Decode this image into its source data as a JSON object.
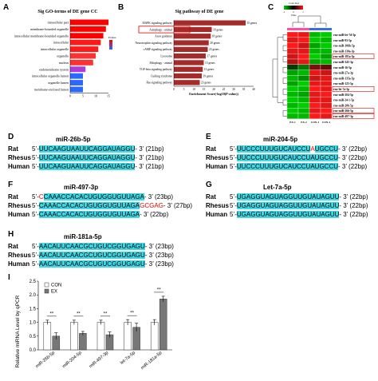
{
  "panels": {
    "A": {
      "label": "A",
      "title": "Sig GO-terms of DE gene CC",
      "terms": [
        "intracellular part",
        "membrane-bounded organelle",
        "intracellular membrane-bounded organelle",
        "intracellular",
        "intracellular organelle",
        "organelle",
        "nucleus",
        "endomembrane system",
        "intracellular organelle lumen",
        "organelle lumen",
        "membrane-enclosed lumen"
      ],
      "values": [
        15,
        14,
        13,
        12,
        11,
        10,
        9,
        6,
        5,
        5,
        5
      ],
      "bar_colors": [
        "#ff0000",
        "#ff0000",
        "#ff0000",
        "#ff1a1a",
        "#ff1a1a",
        "#ff3030",
        "#ff3030",
        "#b03ad8",
        "#2a68ff",
        "#2a68ff",
        "#2a68ff"
      ],
      "xticks": [
        "0",
        "5",
        "10",
        "15"
      ],
      "legend_title": "Pvalue"
    },
    "B": {
      "label": "B",
      "title": "Sig pathway of DE gene",
      "pathways": [
        "MAPK signaling pathway",
        "Autophagy - animal",
        "Axon guidance",
        "Neurotrophin signaling pathway",
        "cAMP signaling pathway",
        "Lysosome",
        "Mitophagy - animal",
        "TGF-beta signaling pathway",
        "Cushing syndrome",
        "Ras signaling pathway"
      ],
      "counts": [
        "35 genes",
        "18 genes",
        "18 genes",
        "20 genes",
        "23 genes",
        "17 genes",
        "13 genes",
        "13 genes",
        "19 genes",
        "23 genes"
      ],
      "values": [
        36,
        19,
        18.5,
        17.5,
        17,
        16,
        15,
        14.5,
        14,
        13
      ],
      "boxed": "Autophagy - animal",
      "xlabel": "Enrichment Score(-log10(P value))",
      "xticks": [
        "0",
        "5",
        "10",
        "15",
        "20",
        "25",
        "30",
        "35",
        "40"
      ]
    },
    "C": {
      "label": "C",
      "rows": [
        "rno-miR-let-7d-5p",
        "rno-miR-93-5p",
        "rno-miR-106b-5p",
        "rno-miR-130a-3p",
        "rno-miR-181a-5p",
        "rno-miR-345-3p",
        "rno-miR-16-5p",
        "rno-miR-27a-3p",
        "rno-miR-135a-5p",
        "rno-miR-125-5p",
        "rno-let-7a-5p",
        "rno-miR-204-5p",
        "rno-miR-24-1-5p",
        "rno-miR-206-5p",
        "rno-miR-26b-5p",
        "rno-miR-497-3p"
      ],
      "boxed_rows": [
        "rno-miR-181a-5p",
        "rno-let-7a-5p",
        "rno-miR-26b-5p",
        "rno-miR-497-3p"
      ],
      "columns": [
        "EX-1",
        "EX-2",
        "CON-1",
        "CON-2"
      ],
      "key_title": "Color Key",
      "key_label": "Value",
      "key_ticks": [
        "-1",
        "0",
        "1"
      ],
      "colors": {
        "high": "#ff1a1a",
        "low": "#00cc00",
        "mid": "#000000",
        "ex_bar": "#ff4fa0",
        "con_bar": "#3b6be8"
      },
      "heat": [
        [
          1,
          0.9,
          -0.9,
          -1
        ],
        [
          0.9,
          1,
          -1,
          -0.9
        ],
        [
          1,
          0.8,
          -0.8,
          -1
        ],
        [
          0.9,
          0.9,
          -0.9,
          -0.9
        ],
        [
          0.8,
          1,
          -1,
          -0.8
        ],
        [
          0.7,
          0.9,
          -0.8,
          -0.9
        ],
        [
          -0.3,
          -0.6,
          0.5,
          0.4
        ],
        [
          -0.8,
          -0.9,
          0.9,
          0.8
        ],
        [
          -0.9,
          -0.7,
          0.8,
          0.9
        ],
        [
          -0.8,
          -1,
          0.9,
          0.9
        ],
        [
          -1,
          -0.9,
          1,
          0.9
        ],
        [
          -0.9,
          -0.8,
          0.9,
          1
        ],
        [
          -1,
          -0.9,
          0.9,
          0.9
        ],
        [
          -0.9,
          -1,
          1,
          0.9
        ],
        [
          -1,
          -0.9,
          0.9,
          1
        ],
        [
          -0.9,
          -0.9,
          1,
          0.9
        ]
      ]
    },
    "D": {
      "label": "D",
      "title": "miR-26b-5p",
      "rows": [
        {
          "species": "Rat",
          "prefix": "5’-",
          "seq": "UUCAAGUAAUUCAGGAUAGGU",
          "red": "",
          "suffix": "- 3’ (21bp)"
        },
        {
          "species": "Rhesus",
          "prefix": "5’-",
          "seq": "UUCAAGUAAUUCAGGAUAGGU",
          "red": "",
          "suffix": "- 3’ (21bp)"
        },
        {
          "species": "Human",
          "prefix": "5’-",
          "seq": "UUCAAGUAAUUCAGGAUAGGU",
          "red": "",
          "suffix": "- 3’ (21bp)"
        }
      ]
    },
    "E": {
      "label": "E",
      "title": "miR-204-5p",
      "rows": [
        {
          "species": "Rat",
          "prefix": "5’-",
          "seq1": "UUCCCUUUGUCAUCCU",
          "red": "A",
          "seq2": "UGCCU",
          "suffix": "- 3’ (22bp)"
        },
        {
          "species": "Rhesus",
          "prefix": "5’-",
          "seq1": "UUCCCUUUGUCAUCCU",
          "red": "",
          "seq2": "AUGCCU",
          "suffix": "- 3’ (22bp)"
        },
        {
          "species": "Human",
          "prefix": "5’-",
          "seq1": "UUCCCUUUGUCAUCCU",
          "red": "",
          "seq2": "AUGCCU",
          "suffix": "- 3’ (22bp)"
        }
      ]
    },
    "F": {
      "label": "F",
      "title": "miR-497-3p",
      "rows": [
        {
          "species": "Rat",
          "prefix": "5’-",
          "red_pre": "C",
          "seq": "CAAACCACACUGUGGUGUUAGA",
          "red": "",
          "suffix": "- 3’ (23bp)"
        },
        {
          "species": "Rhesus",
          "prefix": "5’-",
          "red_pre": "",
          "seq": "CAAACCACACUGUGGUGUUAGA",
          "red": "GCGAG",
          "suffix": "- 3’ (27bp)"
        },
        {
          "species": "Human",
          "prefix": "5’-",
          "red_pre": "",
          "seq": "CAAACCACACUGUGGUGUUAGA",
          "red": "",
          "suffix": "- 3’ (22bp)"
        }
      ]
    },
    "G": {
      "label": "G",
      "title": "Let-7a-5p",
      "rows": [
        {
          "species": "Rat",
          "prefix": "5’-",
          "seq": "UGAGGUAGUAGGUUGUAUAGUU",
          "suffix": "- 3’ (22bp)"
        },
        {
          "species": "Rhesus",
          "prefix": "5’-",
          "seq": "UGAGGUAGUAGGUUGUAUAGUU",
          "suffix": "- 3’ (22bp)"
        },
        {
          "species": "Human",
          "prefix": "5’-",
          "seq": "UGAGGUAGUAGGUUGUAUAGUU",
          "suffix": "- 3’ (22bp)"
        }
      ]
    },
    "H": {
      "label": "H",
      "title": "miR-181a-5p",
      "rows": [
        {
          "species": "Rat",
          "prefix": "5’-",
          "seq": "AACAUUCAACGCUGUCGGUGAGU",
          "suffix": "- 3’ (23bp)"
        },
        {
          "species": "Rhesus",
          "prefix": "5’-",
          "seq": "AACAUUCAACGCUGUCGGUGAGU",
          "suffix": "- 3’ (23bp)"
        },
        {
          "species": "Human",
          "prefix": "5’-",
          "seq": "AACAUUCAACGCUGUCGGUGAGU",
          "suffix": "- 3’ (23bp)"
        }
      ]
    },
    "I": {
      "label": "I",
      "ylabel": "Relative miRNA Level by qPCR",
      "legend": [
        "CON",
        "EX"
      ],
      "sig": "**"
    }
  },
  "chart_data": {
    "type": "bar",
    "categories": [
      "miR-26b-5p",
      "miR-204-5p",
      "miR-497-3p",
      "let-7a-5p",
      "miR-181a-5p"
    ],
    "series": [
      {
        "name": "CON",
        "values": [
          1.0,
          1.0,
          1.0,
          1.0,
          1.0
        ],
        "errors": [
          0.08,
          0.08,
          0.08,
          0.1,
          0.1
        ],
        "color": "#ffffff"
      },
      {
        "name": "EX",
        "values": [
          0.5,
          0.6,
          0.55,
          0.82,
          1.85
        ],
        "errors": [
          0.12,
          0.07,
          0.1,
          0.15,
          0.1
        ],
        "color": "#777777"
      }
    ],
    "ylabel": "Relative miRNA Level by qPCR",
    "ylim": [
      0,
      2.5
    ],
    "yticks": [
      "0.0",
      "0.5",
      "1.0",
      "1.5",
      "2.0",
      "2.5"
    ],
    "legend_position": "top-left"
  }
}
